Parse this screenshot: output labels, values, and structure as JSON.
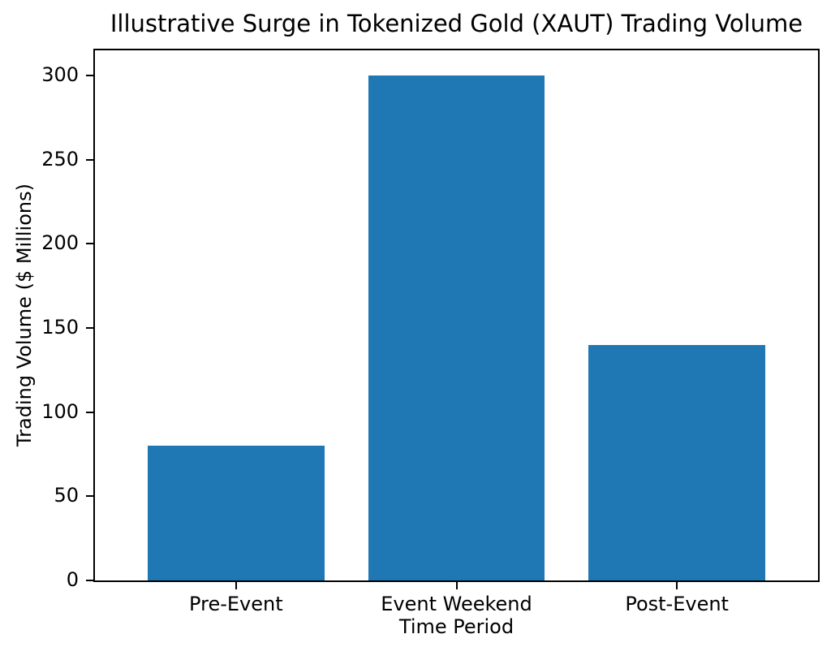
{
  "chart_data": {
    "type": "bar",
    "title": "Illustrative Surge in Tokenized Gold (XAUT) Trading Volume",
    "xlabel": "Time Period",
    "ylabel": "Trading Volume ($ Millions)",
    "categories": [
      "Pre-Event",
      "Event Weekend",
      "Post-Event"
    ],
    "values": [
      80,
      300,
      140
    ],
    "yticks": [
      0,
      50,
      100,
      150,
      200,
      250,
      300
    ],
    "ylim": [
      0,
      315
    ],
    "bar_color": "#1f77b4",
    "bar_width_fraction": 0.8,
    "grid": false,
    "legend_position": "none"
  }
}
